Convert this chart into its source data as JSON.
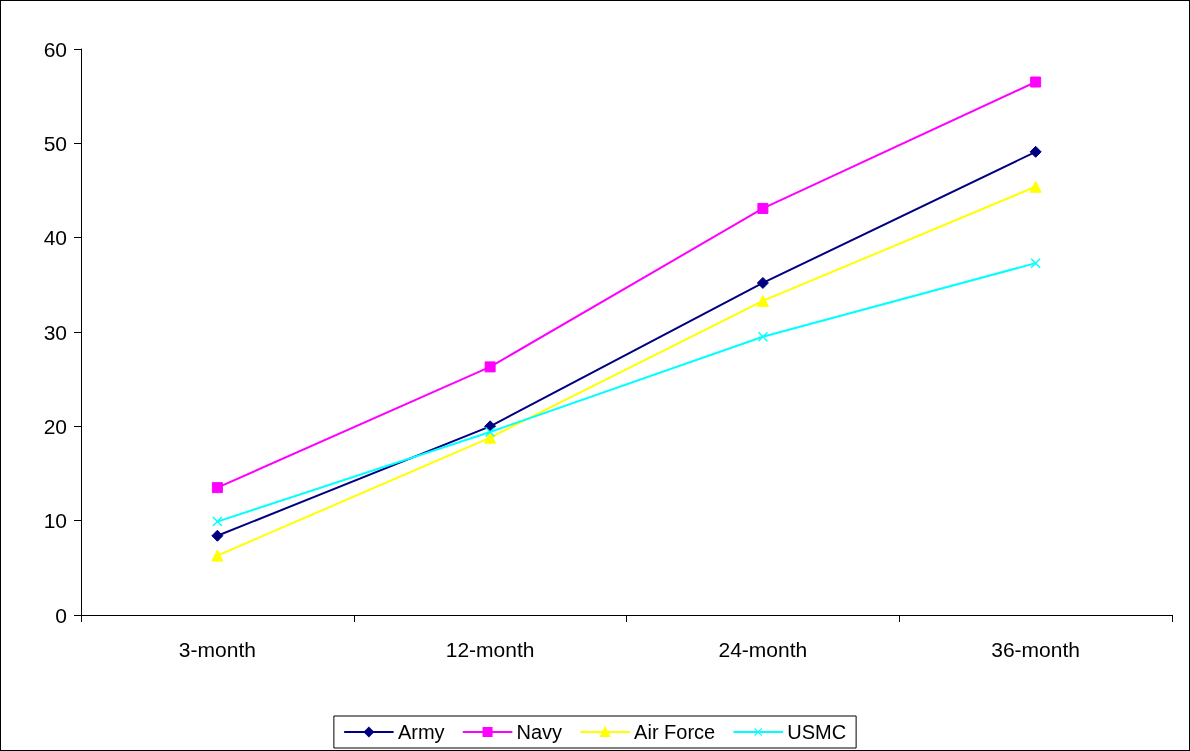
{
  "chart_data": {
    "type": "line",
    "categories": [
      "3-month",
      "12-month",
      "24-month",
      "36-month"
    ],
    "series": [
      {
        "name": "Army",
        "color": "#000080",
        "marker": "diamond",
        "values": [
          8.4,
          20.0,
          35.2,
          49.1
        ]
      },
      {
        "name": "Navy",
        "color": "#ff00ff",
        "marker": "square",
        "values": [
          13.5,
          26.3,
          43.1,
          56.5
        ]
      },
      {
        "name": "Air Force",
        "color": "#ffff00",
        "marker": "triangle",
        "values": [
          6.3,
          18.8,
          33.3,
          45.4
        ]
      },
      {
        "name": "USMC",
        "color": "#00ffff",
        "marker": "cross",
        "values": [
          9.9,
          19.4,
          29.5,
          37.3
        ]
      }
    ],
    "ylim": [
      0,
      60
    ],
    "yticks": [
      0,
      10,
      20,
      30,
      40,
      50,
      60
    ],
    "grid": false,
    "legend": "bottom",
    "line_style": "solid"
  }
}
